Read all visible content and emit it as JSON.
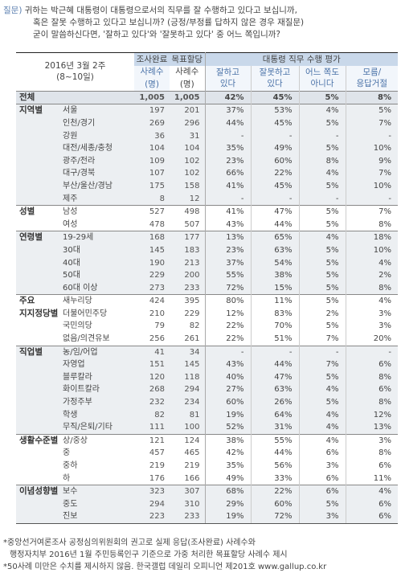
{
  "question": {
    "label": "질문)",
    "lines": [
      "귀하는 박근혜 대통령이 대통령으로서의 직무를 잘 수행하고 있다고 보십니까,",
      "혹은 잘못 수행하고 있다고 보십니까? (긍정/부정률 답하지 않은 경우 재질문)",
      "굳이 말씀하신다면, '잘하고 있다'와 '잘못하고 있다' 중 어느 쪽입니까?"
    ]
  },
  "header": {
    "survey_date": "2016년 3월 2주",
    "survey_days": "(8~10일)",
    "col_complete": "조사완료",
    "col_weighted": "목표할당",
    "col_cases": "사례수",
    "col_unit": "(명)",
    "rating_title": "대통령 직무 수행 평가",
    "rating_cols": [
      [
        "잘하고",
        "있다"
      ],
      [
        "잘못하고",
        "있다"
      ],
      [
        "어느 쪽도",
        "아니다"
      ],
      [
        "모름/",
        "응답거절"
      ]
    ]
  },
  "groups": [
    {
      "rows": [
        {
          "g": "전체",
          "s": "",
          "a": "1,005",
          "b": "1,005",
          "c": [
            "42%",
            "45%",
            "5%",
            "8%"
          ]
        }
      ]
    },
    {
      "rows": [
        {
          "g": "지역별",
          "s": "서울",
          "a": "197",
          "b": "201",
          "c": [
            "37%",
            "53%",
            "4%",
            "5%"
          ]
        },
        {
          "g": "",
          "s": "인천/경기",
          "a": "269",
          "b": "296",
          "c": [
            "44%",
            "45%",
            "5%",
            "7%"
          ]
        },
        {
          "g": "",
          "s": "강원",
          "a": "36",
          "b": "31",
          "c": [
            "-",
            "-",
            "-",
            "-"
          ]
        },
        {
          "g": "",
          "s": "대전/세종/충청",
          "a": "104",
          "b": "104",
          "c": [
            "35%",
            "49%",
            "5%",
            "10%"
          ]
        },
        {
          "g": "",
          "s": "광주/전라",
          "a": "109",
          "b": "102",
          "c": [
            "23%",
            "60%",
            "8%",
            "9%"
          ]
        },
        {
          "g": "",
          "s": "대구/경북",
          "a": "107",
          "b": "102",
          "c": [
            "66%",
            "22%",
            "4%",
            "7%"
          ]
        },
        {
          "g": "",
          "s": "부산/울산/경남",
          "a": "175",
          "b": "158",
          "c": [
            "41%",
            "45%",
            "5%",
            "10%"
          ]
        },
        {
          "g": "",
          "s": "제주",
          "a": "8",
          "b": "12",
          "c": [
            "-",
            "-",
            "-",
            "-"
          ]
        }
      ]
    },
    {
      "rows": [
        {
          "g": "성별",
          "s": "남성",
          "a": "527",
          "b": "498",
          "c": [
            "41%",
            "47%",
            "5%",
            "7%"
          ]
        },
        {
          "g": "",
          "s": "여성",
          "a": "478",
          "b": "507",
          "c": [
            "43%",
            "44%",
            "5%",
            "8%"
          ]
        }
      ]
    },
    {
      "rows": [
        {
          "g": "연령별",
          "s": "19-29세",
          "a": "168",
          "b": "177",
          "c": [
            "13%",
            "65%",
            "4%",
            "18%"
          ]
        },
        {
          "g": "",
          "s": "30대",
          "a": "145",
          "b": "183",
          "c": [
            "23%",
            "63%",
            "5%",
            "10%"
          ]
        },
        {
          "g": "",
          "s": "40대",
          "a": "190",
          "b": "213",
          "c": [
            "37%",
            "54%",
            "5%",
            "4%"
          ]
        },
        {
          "g": "",
          "s": "50대",
          "a": "229",
          "b": "200",
          "c": [
            "55%",
            "38%",
            "5%",
            "2%"
          ]
        },
        {
          "g": "",
          "s": "60대 이상",
          "a": "273",
          "b": "233",
          "c": [
            "72%",
            "15%",
            "5%",
            "8%"
          ]
        }
      ]
    },
    {
      "rows": [
        {
          "g": "주요",
          "s": "새누리당",
          "a": "424",
          "b": "395",
          "c": [
            "80%",
            "11%",
            "5%",
            "4%"
          ]
        },
        {
          "g": "지지정당별",
          "s": "더불어민주당",
          "a": "210",
          "b": "229",
          "c": [
            "12%",
            "83%",
            "2%",
            "3%"
          ]
        },
        {
          "g": "",
          "s": "국민의당",
          "a": "79",
          "b": "82",
          "c": [
            "22%",
            "70%",
            "5%",
            "3%"
          ]
        },
        {
          "g": "",
          "s": "없음/의견유보",
          "a": "256",
          "b": "261",
          "c": [
            "22%",
            "51%",
            "7%",
            "20%"
          ]
        }
      ]
    },
    {
      "rows": [
        {
          "g": "직업별",
          "s": "농/임/어업",
          "a": "41",
          "b": "34",
          "c": [
            "-",
            "-",
            "-",
            "-"
          ]
        },
        {
          "g": "",
          "s": "자영업",
          "a": "151",
          "b": "145",
          "c": [
            "43%",
            "44%",
            "7%",
            "6%"
          ]
        },
        {
          "g": "",
          "s": "블루칼라",
          "a": "120",
          "b": "118",
          "c": [
            "40%",
            "47%",
            "5%",
            "8%"
          ]
        },
        {
          "g": "",
          "s": "화이트칼라",
          "a": "268",
          "b": "294",
          "c": [
            "27%",
            "63%",
            "4%",
            "6%"
          ]
        },
        {
          "g": "",
          "s": "가정주부",
          "a": "232",
          "b": "234",
          "c": [
            "60%",
            "26%",
            "5%",
            "8%"
          ]
        },
        {
          "g": "",
          "s": "학생",
          "a": "82",
          "b": "81",
          "c": [
            "19%",
            "64%",
            "4%",
            "12%"
          ]
        },
        {
          "g": "",
          "s": "무직/은퇴/기타",
          "a": "111",
          "b": "100",
          "c": [
            "52%",
            "31%",
            "4%",
            "13%"
          ]
        }
      ]
    },
    {
      "rows": [
        {
          "g": "생활수준별",
          "s": "상/중상",
          "a": "121",
          "b": "124",
          "c": [
            "38%",
            "55%",
            "4%",
            "3%"
          ]
        },
        {
          "g": "",
          "s": "중",
          "a": "457",
          "b": "465",
          "c": [
            "42%",
            "44%",
            "6%",
            "8%"
          ]
        },
        {
          "g": "",
          "s": "중하",
          "a": "219",
          "b": "219",
          "c": [
            "35%",
            "56%",
            "3%",
            "6%"
          ]
        },
        {
          "g": "",
          "s": "하",
          "a": "176",
          "b": "166",
          "c": [
            "49%",
            "33%",
            "6%",
            "11%"
          ]
        }
      ]
    },
    {
      "rows": [
        {
          "g": "이념성향별",
          "s": "보수",
          "a": "323",
          "b": "307",
          "c": [
            "68%",
            "22%",
            "6%",
            "4%"
          ]
        },
        {
          "g": "",
          "s": "중도",
          "a": "294",
          "b": "310",
          "c": [
            "29%",
            "60%",
            "5%",
            "6%"
          ]
        },
        {
          "g": "",
          "s": "진보",
          "a": "223",
          "b": "233",
          "c": [
            "19%",
            "72%",
            "3%",
            "6%"
          ]
        }
      ]
    }
  ],
  "footnotes": [
    "*중앙선거여론조사 공정심의위원회의 권고로 실제 응답(조사완료) 사례수와",
    "행정자치부 2016년 1월 주민등록인구 기준으로 가중 처리한 목표할당 사례수 제시",
    "*50사례 미만은 수치를 제시하지 않음. 한국갤럽 데일리 오피니언 제201호 www.gallup.co.kr"
  ]
}
